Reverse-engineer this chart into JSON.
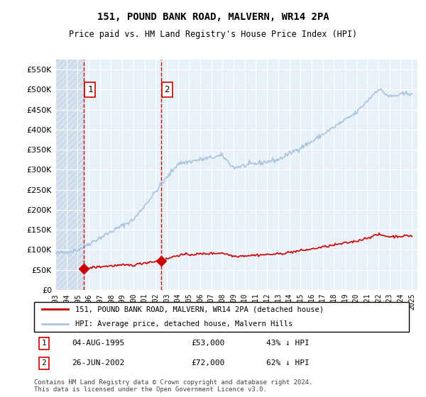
{
  "title1": "151, POUND BANK ROAD, MALVERN, WR14 2PA",
  "title2": "Price paid vs. HM Land Registry's House Price Index (HPI)",
  "legend_line1": "151, POUND BANK ROAD, MALVERN, WR14 2PA (detached house)",
  "legend_line2": "HPI: Average price, detached house, Malvern Hills",
  "table_rows": [
    {
      "num": 1,
      "date": "04-AUG-1995",
      "price": "£53,000",
      "pct": "43% ↓ HPI"
    },
    {
      "num": 2,
      "date": "26-JUN-2002",
      "price": "£72,000",
      "pct": "62% ↓ HPI"
    }
  ],
  "footnote": "Contains HM Land Registry data © Crown copyright and database right 2024.\nThis data is licensed under the Open Government Licence v3.0.",
  "sale1_x": 1995.58,
  "sale1_y": 53000,
  "sale2_x": 2002.48,
  "sale2_y": 72000,
  "hpi_color": "#aac4e0",
  "sale_color": "#cc0000",
  "vline_color": "#cc0000",
  "hatch_color": "#c8d8e8",
  "background_color": "#dde8f0",
  "plot_bg": "#f0f4f8",
  "ylim": [
    0,
    575000
  ],
  "yticks": [
    0,
    50000,
    100000,
    150000,
    200000,
    250000,
    300000,
    350000,
    400000,
    450000,
    500000,
    550000
  ],
  "xlim_left": 1993.0,
  "xlim_right": 2025.5,
  "xticks": [
    1993,
    1994,
    1995,
    1996,
    1997,
    1998,
    1999,
    2000,
    2001,
    2002,
    2003,
    2004,
    2005,
    2006,
    2007,
    2008,
    2009,
    2010,
    2011,
    2012,
    2013,
    2014,
    2015,
    2016,
    2017,
    2018,
    2019,
    2020,
    2021,
    2022,
    2023,
    2024,
    2025
  ]
}
